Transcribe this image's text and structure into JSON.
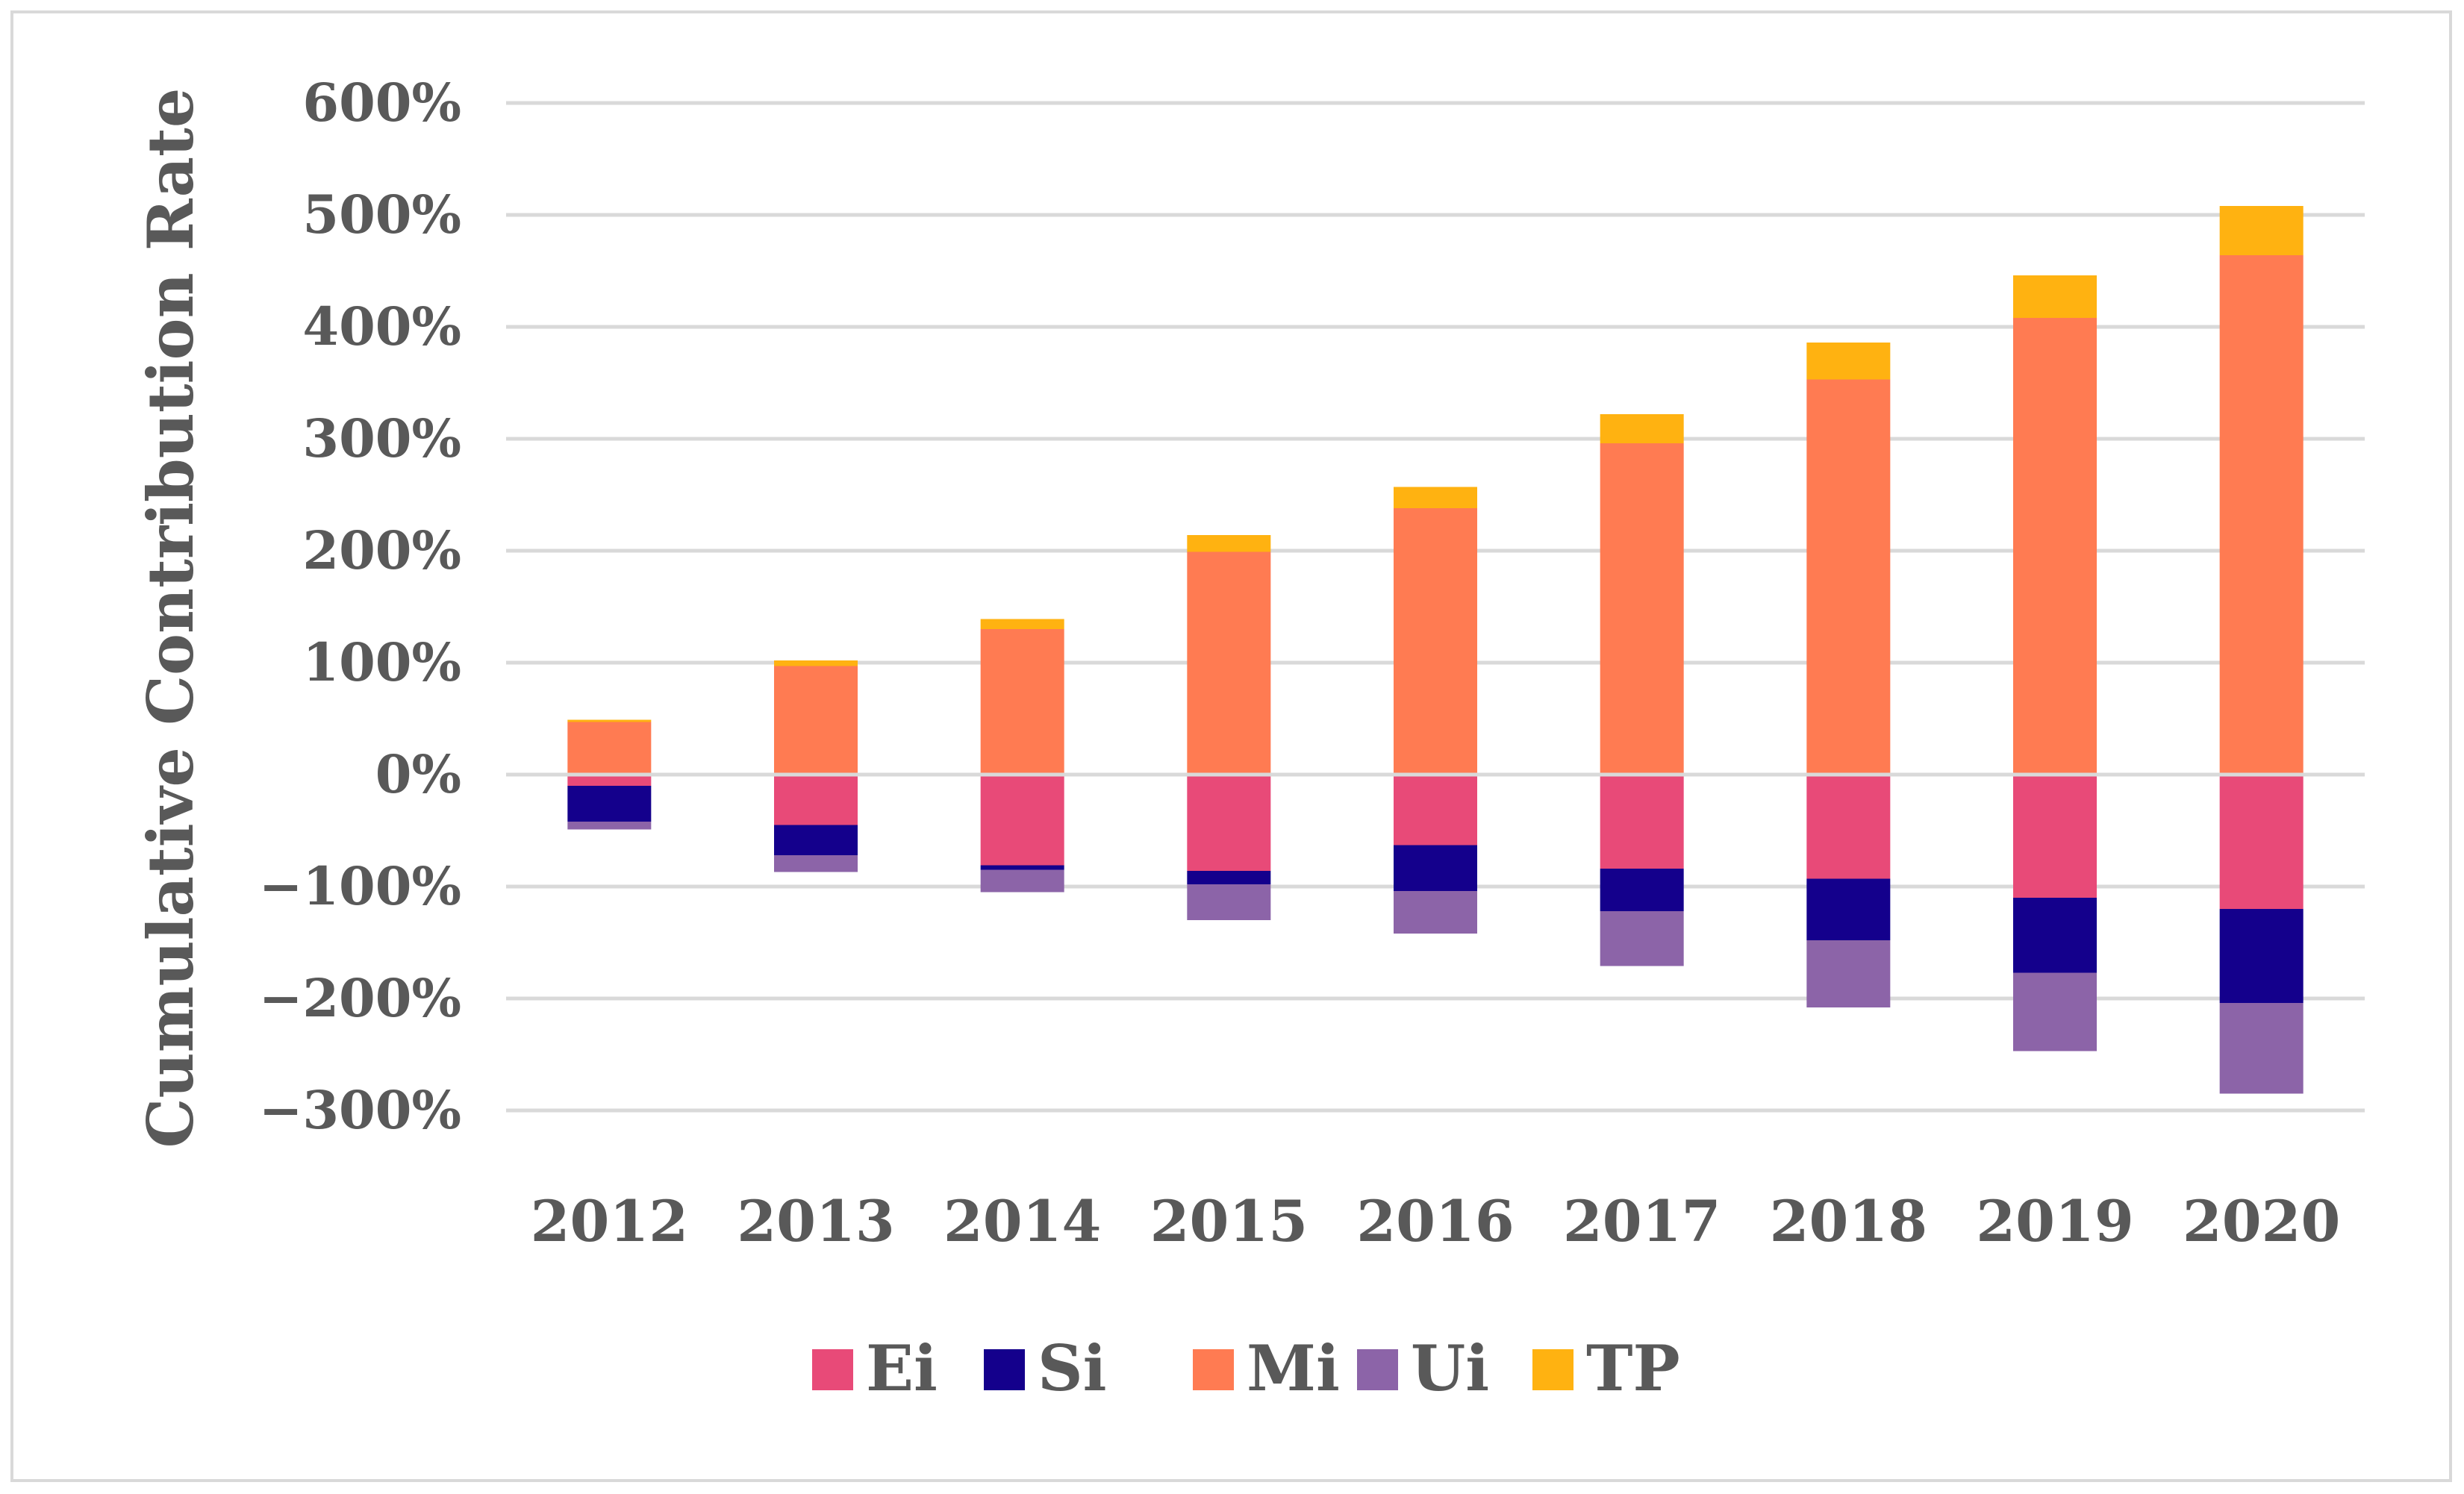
{
  "chart_data": {
    "type": "bar",
    "stacked": true,
    "title": "",
    "xlabel": "",
    "ylabel": "Cumulative Contribution Rate",
    "ylim": [
      -300,
      600
    ],
    "yticks": [
      600,
      500,
      400,
      300,
      200,
      100,
      0,
      -100,
      -200,
      -300
    ],
    "ytick_labels": [
      "600%",
      "500%",
      "400%",
      "300%",
      "200%",
      "100%",
      "0%",
      "−100%",
      "−200%",
      "−300%"
    ],
    "grid": true,
    "legend_position": "bottom",
    "categories": [
      "2012",
      "2013",
      "2014",
      "2015",
      "2016",
      "2017",
      "2018",
      "2019",
      "2020"
    ],
    "series": [
      {
        "name": "Ei",
        "color": "#e84a78",
        "values": [
          -10,
          -45,
          -81,
          -86,
          -63,
          -84,
          -93,
          -110,
          -120
        ]
      },
      {
        "name": "Si",
        "color": "#14008c",
        "values": [
          -32,
          -27,
          -4,
          -12,
          -41,
          -38,
          -55,
          -67,
          -84
        ]
      },
      {
        "name": "Mi",
        "color": "#ff7b52",
        "values": [
          47,
          97,
          130,
          199,
          238,
          296,
          353,
          408,
          464
        ]
      },
      {
        "name": "Ui",
        "color": "#8c64a8",
        "values": [
          -7,
          -15,
          -20,
          -32,
          -38,
          -49,
          -60,
          -70,
          -81
        ]
      },
      {
        "name": "TP",
        "color": "#ffb211",
        "values": [
          2,
          5,
          9,
          15,
          19,
          26,
          33,
          38,
          44
        ]
      }
    ]
  }
}
